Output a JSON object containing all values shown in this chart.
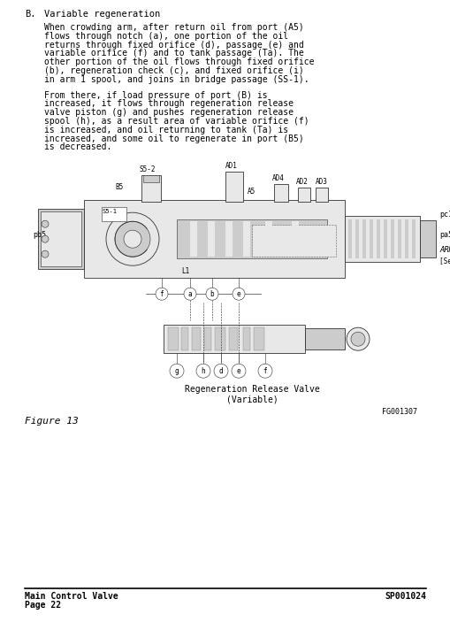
{
  "bg_color": "#ffffff",
  "text_color": "#000000",
  "section_label": "B.",
  "section_title": "Variable regeneration",
  "paragraph1": "When crowding arm, after return oil from port (A5) flows through notch (a), one portion of the oil returns through fixed orifice (d), passage (e) and variable orifice (f) and to tank passage (Ta). The other portion of the oil flows through fixed orifice (b), regeneration check (c), and fixed orifice (i) in arm 1 spool, and joins in bridge passage (SS-1).",
  "paragraph2": "From there, if load pressure of port (B) is increased, it flows through regeneration release valve piston (g) and pushes regeneration release spool (h), as a result area of variable orifice (f) is increased, and oil returning to tank (Ta) is increased, and some oil to regenerate in port (B5) is decreased.",
  "figure_label": "Figure 13",
  "figure_id": "FG001307",
  "caption_line1": "Regeneration Release Valve",
  "caption_line2": "(Variable)",
  "footer_left1": "Main Control Valve",
  "footer_left2": "Page 22",
  "footer_right": "SP001024",
  "lw": 0.6,
  "edge_color": "#333333",
  "fill_light": "#e8e8e8",
  "fill_mid": "#cccccc",
  "fill_dark": "#aaaaaa"
}
